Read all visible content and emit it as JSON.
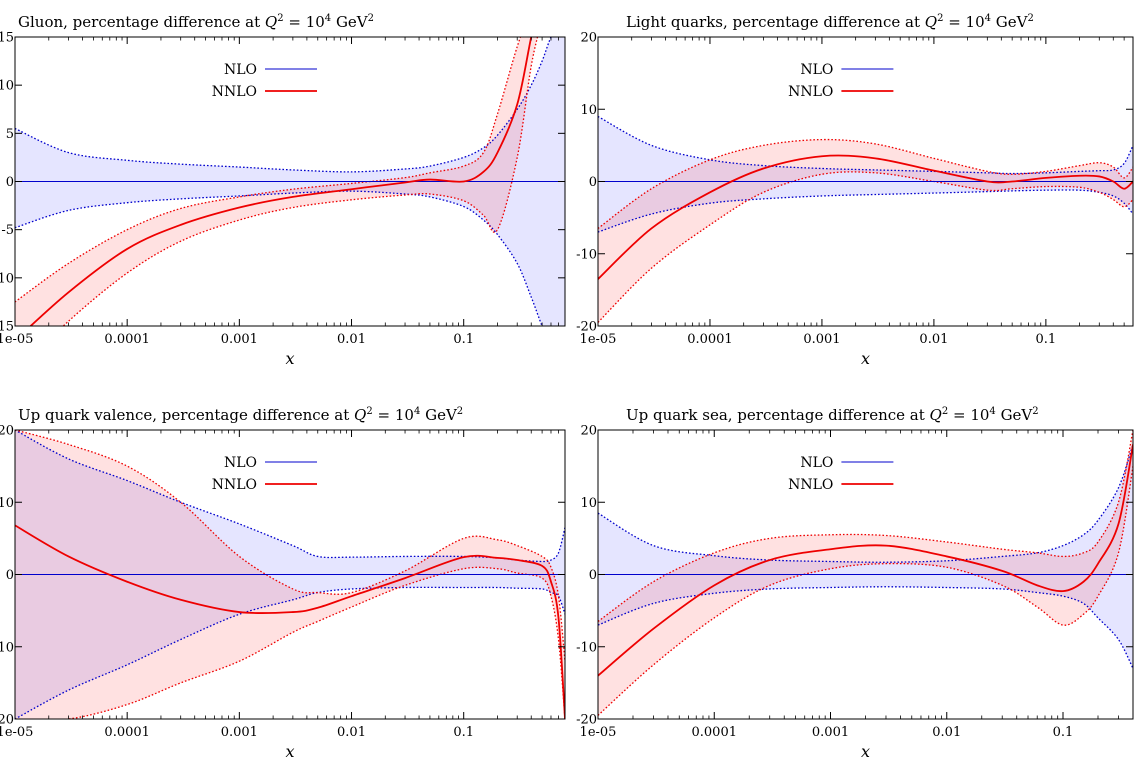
{
  "chart_data": [
    {
      "type": "line",
      "title": "Gluon, percentage difference at Q² = 10⁴ GeV²",
      "title_parts": [
        "Gluon, percentage difference at ",
        "Q",
        "2",
        " = 10",
        "4",
        " GeV",
        "2"
      ],
      "xlabel": "x",
      "xscale": "log",
      "xlim": [
        1e-05,
        0.8
      ],
      "ylim": [
        -15,
        15
      ],
      "x_ticks": [
        1e-05,
        0.0001,
        0.001,
        0.01,
        0.1
      ],
      "x_tick_labels": [
        "1e-05",
        "0.0001",
        "0.001",
        "0.01",
        "0.1"
      ],
      "y_ticks": [
        -15,
        -10,
        -5,
        0,
        5,
        10,
        15
      ],
      "y_tick_labels": [
        "-15",
        "-10",
        "-5",
        "0",
        "5",
        "10",
        "15"
      ],
      "legend_position": "top-center",
      "x": [
        1e-05,
        3e-05,
        0.0001,
        0.0003,
        0.001,
        0.003,
        0.01,
        0.03,
        0.05,
        0.1,
        0.15,
        0.2,
        0.3,
        0.4,
        0.5,
        0.6,
        0.8
      ],
      "series": [
        {
          "name": "NLO",
          "color": "#0000cc",
          "central": [
            0,
            0,
            0,
            0,
            0,
            0,
            0,
            0,
            0,
            0,
            0,
            0,
            0,
            0,
            0,
            0,
            0
          ],
          "upper": [
            5.5,
            3.0,
            2.2,
            1.8,
            1.5,
            1.2,
            1.0,
            1.3,
            1.6,
            2.5,
            3.5,
            4.8,
            7.5,
            10.0,
            12.5,
            15.0,
            18.0
          ],
          "lower": [
            -4.8,
            -3.0,
            -2.2,
            -1.8,
            -1.5,
            -1.2,
            -1.0,
            -1.3,
            -1.6,
            -2.6,
            -4.0,
            -5.5,
            -8.5,
            -12.0,
            -15.0,
            -17.0,
            -20.0
          ]
        },
        {
          "name": "NNLO",
          "color": "#ee0000",
          "central": [
            -16.5,
            -11.5,
            -7.0,
            -4.5,
            -2.7,
            -1.6,
            -0.8,
            -0.1,
            0.2,
            0.0,
            1.0,
            3.0,
            8.0,
            15.0,
            20.0,
            25.0,
            30.0
          ],
          "upper": [
            -12.5,
            -8.5,
            -5.0,
            -2.8,
            -1.6,
            -0.8,
            -0.2,
            0.4,
            0.9,
            1.6,
            3.0,
            7.0,
            14.0,
            18.0,
            22.0,
            27.0,
            32.0
          ],
          "lower": [
            -20.0,
            -14.5,
            -9.5,
            -6.2,
            -4.0,
            -2.7,
            -1.9,
            -1.4,
            -1.3,
            -2.0,
            -3.5,
            -5.0,
            2.5,
            12.0,
            17.0,
            22.0,
            28.0
          ]
        }
      ]
    },
    {
      "type": "line",
      "title": "Light quarks, percentage difference at Q² = 10⁴ GeV²",
      "title_parts": [
        "Light quarks, percentage difference at ",
        "Q",
        "2",
        " = 10",
        "4",
        " GeV",
        "2"
      ],
      "xlabel": "x",
      "xscale": "log",
      "xlim": [
        1e-05,
        0.6
      ],
      "ylim": [
        -20,
        20
      ],
      "x_ticks": [
        1e-05,
        0.0001,
        0.001,
        0.01,
        0.1
      ],
      "x_tick_labels": [
        "1e-05",
        "0.0001",
        "0.001",
        "0.01",
        "0.1"
      ],
      "y_ticks": [
        -20,
        -10,
        0,
        10,
        20
      ],
      "y_tick_labels": [
        "-20",
        "-10",
        "0",
        "10",
        "20"
      ],
      "legend_position": "top-center",
      "x": [
        1e-05,
        3e-05,
        0.0001,
        0.0003,
        0.001,
        0.003,
        0.01,
        0.03,
        0.05,
        0.1,
        0.2,
        0.3,
        0.4,
        0.5,
        0.6
      ],
      "series": [
        {
          "name": "NLO",
          "color": "#0000cc",
          "central": [
            0,
            0,
            0,
            0,
            0,
            0,
            0,
            0,
            0,
            0,
            0,
            0,
            0,
            0,
            0
          ],
          "upper": [
            9.0,
            5.0,
            3.0,
            2.2,
            1.8,
            1.6,
            1.4,
            1.2,
            1.1,
            1.2,
            1.4,
            1.5,
            1.6,
            2.5,
            5.0
          ],
          "lower": [
            -7.0,
            -4.5,
            -3.0,
            -2.4,
            -2.0,
            -1.8,
            -1.6,
            -1.4,
            -1.3,
            -1.2,
            -1.2,
            -1.5,
            -2.0,
            -3.0,
            -4.5
          ]
        },
        {
          "name": "NNLO",
          "color": "#ee0000",
          "central": [
            -13.5,
            -6.5,
            -1.5,
            1.8,
            3.5,
            3.2,
            1.5,
            0.0,
            0.0,
            0.5,
            0.8,
            0.7,
            0.0,
            -1.0,
            0.0
          ],
          "upper": [
            -6.5,
            -1.0,
            3.0,
            5.0,
            5.8,
            5.2,
            3.2,
            1.4,
            1.0,
            1.4,
            2.2,
            2.6,
            2.0,
            0.5,
            2.0
          ],
          "lower": [
            -19.5,
            -12.0,
            -6.0,
            -1.5,
            1.0,
            1.2,
            0.0,
            -1.2,
            -1.0,
            -0.7,
            -0.8,
            -1.5,
            -2.5,
            -3.5,
            -2.5
          ]
        }
      ]
    },
    {
      "type": "line",
      "title": "Up quark valence, percentage difference at Q² = 10⁴ GeV²",
      "title_parts": [
        "Up quark valence, percentage difference at ",
        "Q",
        "2",
        " = 10",
        "4",
        " GeV",
        "2"
      ],
      "xlabel": "x",
      "xscale": "log",
      "xlim": [
        1e-05,
        0.8
      ],
      "ylim": [
        -20,
        20
      ],
      "x_ticks": [
        1e-05,
        0.0001,
        0.001,
        0.01,
        0.1
      ],
      "x_tick_labels": [
        "1e-05",
        "0.0001",
        "0.001",
        "0.01",
        "0.1"
      ],
      "y_ticks": [
        -20,
        -10,
        0,
        10,
        20
      ],
      "y_tick_labels": [
        "-20",
        "-10",
        "0",
        "10",
        "20"
      ],
      "legend_position": "top-center",
      "x": [
        1e-05,
        3e-05,
        0.0001,
        0.0003,
        0.001,
        0.003,
        0.005,
        0.01,
        0.03,
        0.1,
        0.2,
        0.3,
        0.5,
        0.6,
        0.7,
        0.8
      ],
      "series": [
        {
          "name": "NLO",
          "color": "#0000cc",
          "central": [
            0,
            0,
            0,
            0,
            0,
            0,
            0,
            0,
            0,
            0,
            0,
            0,
            0,
            0,
            0,
            0
          ],
          "upper": [
            20.0,
            16.0,
            13.0,
            10.0,
            7.0,
            4.0,
            2.5,
            2.4,
            2.5,
            2.5,
            2.3,
            2.0,
            1.8,
            2.0,
            3.0,
            6.5
          ],
          "lower": [
            -20.0,
            -16.0,
            -12.5,
            -9.0,
            -5.5,
            -3.5,
            -2.5,
            -2.0,
            -1.8,
            -1.8,
            -1.8,
            -1.9,
            -2.0,
            -2.5,
            -3.0,
            -5.5
          ]
        },
        {
          "name": "NNLO",
          "color": "#ee0000",
          "central": [
            6.8,
            2.5,
            -1.0,
            -3.5,
            -5.2,
            -5.2,
            -4.6,
            -3.0,
            -0.5,
            2.4,
            2.3,
            2.0,
            1.2,
            -1.0,
            -6.0,
            -20.0
          ],
          "upper": [
            20.0,
            18.0,
            15.0,
            10.0,
            2.5,
            -2.0,
            -2.5,
            -2.5,
            0.5,
            5.0,
            4.8,
            4.0,
            2.5,
            1.0,
            -3.0,
            -12.0
          ],
          "lower": [
            -20.0,
            -20.0,
            -18.0,
            -15.0,
            -12.0,
            -8.0,
            -6.5,
            -4.5,
            -1.5,
            0.8,
            0.8,
            0.2,
            -0.5,
            -3.0,
            -9.0,
            -20.0
          ]
        }
      ]
    },
    {
      "type": "line",
      "title": "Up quark sea, percentage difference at Q² = 10⁴ GeV²",
      "title_parts": [
        "Up quark sea, percentage difference at ",
        "Q",
        "2",
        " = 10",
        "4",
        " GeV",
        "2"
      ],
      "xlabel": "x",
      "xscale": "log",
      "xlim": [
        1e-05,
        0.4
      ],
      "ylim": [
        -20,
        20
      ],
      "x_ticks": [
        1e-05,
        0.0001,
        0.001,
        0.01,
        0.1
      ],
      "x_tick_labels": [
        "1e-05",
        "0.0001",
        "0.001",
        "0.01",
        "0.1"
      ],
      "y_ticks": [
        -20,
        -10,
        0,
        10,
        20
      ],
      "y_tick_labels": [
        "-20",
        "-10",
        "0",
        "10",
        "20"
      ],
      "legend_position": "top-center",
      "x": [
        1e-05,
        3e-05,
        0.0001,
        0.0003,
        0.001,
        0.003,
        0.01,
        0.03,
        0.06,
        0.1,
        0.15,
        0.2,
        0.3,
        0.4
      ],
      "series": [
        {
          "name": "NLO",
          "color": "#0000cc",
          "central": [
            0,
            0,
            0,
            0,
            0,
            0,
            0,
            0,
            0,
            0,
            0,
            0,
            0,
            0
          ],
          "upper": [
            8.5,
            4.0,
            2.6,
            2.0,
            1.8,
            1.7,
            1.9,
            2.5,
            3.0,
            4.0,
            5.5,
            7.5,
            12.0,
            18.0
          ],
          "lower": [
            -7.0,
            -4.0,
            -2.6,
            -2.0,
            -1.8,
            -1.7,
            -1.8,
            -2.0,
            -2.5,
            -3.0,
            -4.0,
            -6.0,
            -9.0,
            -13.0
          ]
        },
        {
          "name": "NNLO",
          "color": "#ee0000",
          "central": [
            -14.0,
            -7.5,
            -1.5,
            2.0,
            3.5,
            4.0,
            2.5,
            0.5,
            -1.5,
            -2.3,
            -1.0,
            1.5,
            7.0,
            18.0
          ],
          "upper": [
            -6.5,
            -1.0,
            3.0,
            5.0,
            5.5,
            5.4,
            4.5,
            3.5,
            3.0,
            2.5,
            3.0,
            4.5,
            10.0,
            20.0
          ],
          "lower": [
            -19.5,
            -12.5,
            -6.0,
            -1.5,
            0.8,
            1.5,
            1.0,
            -1.5,
            -4.5,
            -7.0,
            -5.5,
            -3.0,
            3.0,
            15.0
          ]
        }
      ]
    }
  ]
}
